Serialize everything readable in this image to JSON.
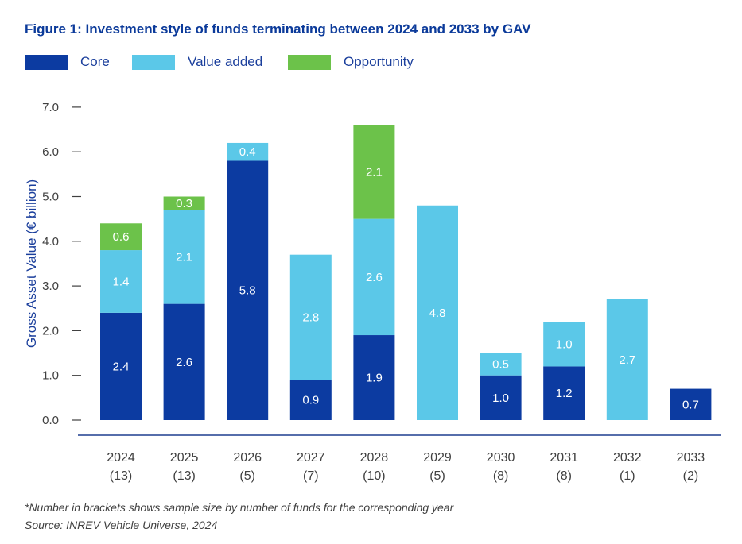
{
  "chart_data": {
    "type": "bar",
    "stacked": true,
    "title": "Figure 1: Investment style of funds terminating between 2024 and 2033 by GAV",
    "ylabel": "Gross Asset Value (€ billion)",
    "xlabel": "",
    "ylim": [
      0,
      7
    ],
    "yticks": [
      "0.0",
      "1.0",
      "2.0",
      "3.0",
      "4.0",
      "5.0",
      "6.0",
      "7.0"
    ],
    "categories": [
      "2024",
      "2025",
      "2026",
      "2027",
      "2028",
      "2029",
      "2030",
      "2031",
      "2032",
      "2033"
    ],
    "sample_sizes": [
      "(13)",
      "(13)",
      "(5)",
      "(7)",
      "(10)",
      "(5)",
      "(8)",
      "(8)",
      "(1)",
      "(2)"
    ],
    "legend_position": "top-left",
    "grid": false,
    "series": [
      {
        "name": "Core",
        "color": "#0c3ba1",
        "values": [
          2.4,
          2.6,
          5.8,
          0.9,
          1.9,
          0,
          1.0,
          1.2,
          0,
          0.7
        ],
        "labels": [
          "2.4",
          "2.6",
          "5.8",
          "0.9",
          "1.9",
          "",
          "1.0",
          "1.2",
          "",
          "0.7"
        ]
      },
      {
        "name": "Value added",
        "color": "#5bc8e8",
        "values": [
          1.4,
          2.1,
          0.4,
          2.8,
          2.6,
          4.8,
          0.5,
          1.0,
          2.7,
          0
        ],
        "labels": [
          "1.4",
          "2.1",
          "0.4",
          "2.8",
          "2.6",
          "4.8",
          "0.5",
          "1.0",
          "2.7",
          ""
        ]
      },
      {
        "name": "Opportunity",
        "color": "#6cc24a",
        "values": [
          0.6,
          0.3,
          0,
          0,
          2.1,
          0,
          0,
          0,
          0,
          0
        ],
        "labels": [
          "0.6",
          "0.3",
          "",
          "",
          "2.1",
          "",
          "",
          "",
          "",
          ""
        ]
      }
    ],
    "axis_color": "#1f3f8f",
    "tick_color": "#404040"
  },
  "footnotes": {
    "note": "*Number in brackets shows sample size by number of funds for the corresponding year",
    "source": "Source: INREV Vehicle Universe, 2024"
  }
}
